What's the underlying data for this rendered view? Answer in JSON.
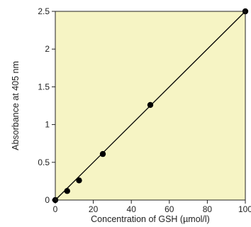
{
  "chart_data": {
    "type": "scatter",
    "title": "",
    "xlabel": "Concentration of GSH (µmol/l)",
    "ylabel": "Absorbance at 405 nm",
    "xlim": [
      0,
      100
    ],
    "ylim": [
      0,
      2.5
    ],
    "xticks": [
      0,
      20,
      40,
      60,
      80,
      100
    ],
    "xtick_labels": [
      "0",
      "20",
      "40",
      "60",
      "80",
      "100"
    ],
    "yticks": [
      0,
      0.5,
      1,
      1.5,
      2,
      2.5
    ],
    "ytick_labels": [
      "0",
      "0.5",
      "1",
      "1.5",
      "2",
      "2.5"
    ],
    "grid": false,
    "background_color": "#f6f4c4",
    "marker_color": "#000000",
    "line_color": "#000000",
    "series": [
      {
        "x": [
          0,
          6.25,
          12.5,
          25,
          50,
          100
        ],
        "y": [
          0.0,
          0.12,
          0.26,
          0.61,
          1.26,
          2.5
        ]
      }
    ],
    "fit_line": {
      "x": [
        0,
        100
      ],
      "y": [
        0.0,
        2.5
      ]
    }
  }
}
